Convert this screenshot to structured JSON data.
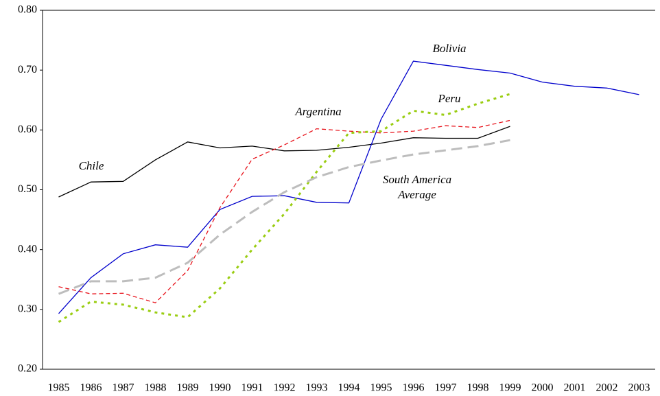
{
  "chart_data": {
    "type": "line",
    "categories": [
      "1985",
      "1986",
      "1987",
      "1988",
      "1989",
      "1990",
      "1991",
      "1992",
      "1993",
      "1994",
      "1995",
      "1996",
      "1997",
      "1998",
      "1999",
      "2000",
      "2001",
      "2002",
      "2003"
    ],
    "ylim": [
      0.2,
      0.8
    ],
    "yticks": [
      {
        "value": 0.2,
        "label": "0.20"
      },
      {
        "value": 0.3,
        "label": "0.30"
      },
      {
        "value": 0.4,
        "label": "0.40"
      },
      {
        "value": 0.5,
        "label": "0.50"
      },
      {
        "value": 0.6,
        "label": "0.60"
      },
      {
        "value": 0.7,
        "label": "0.70"
      },
      {
        "value": 0.8,
        "label": "0.80"
      }
    ],
    "grid": false,
    "series": [
      {
        "name": "Chile",
        "color": "#000000",
        "line_style": "solid",
        "values": [
          0.488,
          0.513,
          0.514,
          0.55,
          0.58,
          0.57,
          0.573,
          0.565,
          0.566,
          0.571,
          0.578,
          0.587,
          0.586,
          0.586,
          0.606,
          null,
          null,
          null,
          null
        ]
      },
      {
        "name": "Bolivia",
        "color": "#0000cc",
        "line_style": "solid",
        "values": [
          0.293,
          0.353,
          0.393,
          0.408,
          0.404,
          0.467,
          0.489,
          0.49,
          0.479,
          0.478,
          0.618,
          0.715,
          0.708,
          0.701,
          0.695,
          0.68,
          0.673,
          0.67,
          0.659
        ]
      },
      {
        "name": "Argentina",
        "color": "#e8141c",
        "line_style": "dashed",
        "values": [
          0.338,
          0.326,
          0.327,
          0.311,
          0.365,
          0.47,
          0.551,
          0.575,
          0.602,
          0.598,
          0.595,
          0.598,
          0.607,
          0.604,
          0.616,
          null,
          null,
          null,
          null
        ]
      },
      {
        "name": "Peru",
        "color": "#9acd12",
        "line_style": "dotted",
        "values": [
          0.279,
          0.313,
          0.308,
          0.295,
          0.287,
          0.335,
          0.4,
          0.46,
          0.53,
          0.595,
          0.598,
          0.632,
          0.625,
          0.644,
          0.66,
          null,
          null,
          null,
          null
        ]
      },
      {
        "name": "South America Average",
        "color": "#bdbdbd",
        "line_style": "long-dashed",
        "values": [
          0.326,
          0.347,
          0.347,
          0.353,
          0.378,
          0.425,
          0.463,
          0.496,
          0.521,
          0.538,
          0.549,
          0.559,
          0.566,
          0.573,
          0.583,
          null,
          null,
          null,
          null
        ]
      }
    ]
  }
}
